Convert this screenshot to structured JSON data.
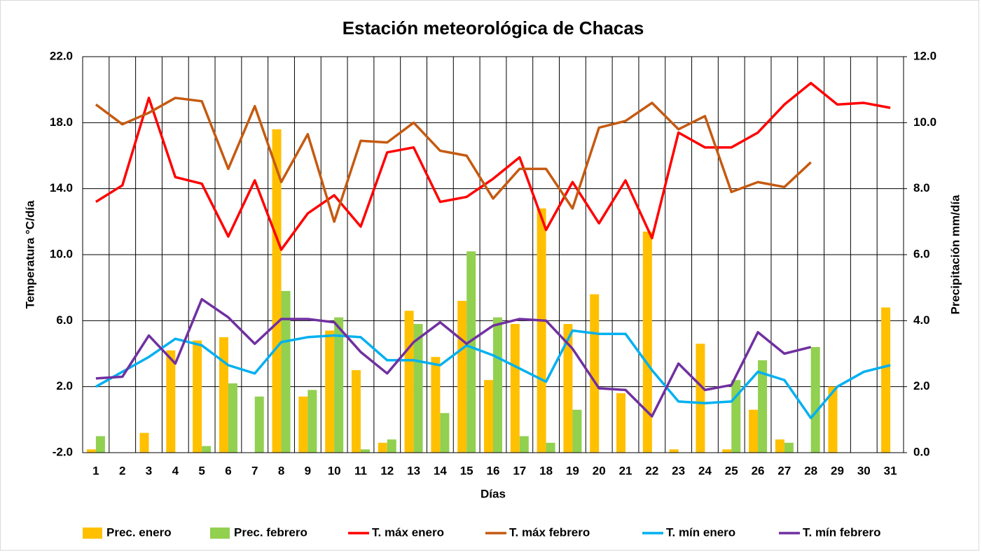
{
  "chart_data": {
    "type": "combo",
    "title": "Estación meteorológica de Chacas",
    "xlabel": "Días",
    "ylabel": "Temperatura °C/día",
    "y2label": "Precipitación mm/día",
    "categories": [
      "1",
      "2",
      "3",
      "4",
      "5",
      "6",
      "7",
      "8",
      "9",
      "10",
      "11",
      "12",
      "13",
      "14",
      "15",
      "16",
      "17",
      "18",
      "19",
      "20",
      "21",
      "22",
      "23",
      "24",
      "25",
      "26",
      "27",
      "28",
      "29",
      "30",
      "31"
    ],
    "ylim": [
      -2,
      22
    ],
    "yticks": [
      {
        "value": -2,
        "label": "-2.0"
      },
      {
        "value": 2,
        "label": "2.0"
      },
      {
        "value": 6,
        "label": "6.0"
      },
      {
        "value": 10,
        "label": "10.0"
      },
      {
        "value": 14,
        "label": "14.0"
      },
      {
        "value": 18,
        "label": "18.0"
      },
      {
        "value": 22,
        "label": "22.0"
      }
    ],
    "y2lim": [
      0,
      12
    ],
    "y2ticks": [
      {
        "value": 0,
        "label": "0.0"
      },
      {
        "value": 2,
        "label": "2.0"
      },
      {
        "value": 4,
        "label": "4.0"
      },
      {
        "value": 6,
        "label": "6.0"
      },
      {
        "value": 8,
        "label": "8.0"
      },
      {
        "value": 10,
        "label": "10.0"
      },
      {
        "value": 12,
        "label": "12.0"
      }
    ],
    "grid": true,
    "legend": "bottom",
    "series": [
      {
        "name": "Prec. enero",
        "type": "bar",
        "axis": "y2",
        "color": "#FFC000",
        "values": [
          0.1,
          0,
          0.6,
          3.1,
          3.4,
          3.5,
          0,
          9.8,
          1.7,
          3.7,
          2.5,
          0.3,
          4.3,
          2.9,
          4.6,
          2.2,
          3.9,
          7.4,
          3.9,
          4.8,
          1.8,
          6.7,
          0.1,
          3.3,
          0.1,
          1.3,
          0.4,
          0,
          2.0,
          0,
          4.4
        ]
      },
      {
        "name": "Prec. febrero",
        "type": "bar",
        "axis": "y2",
        "color": "#92D050",
        "values": [
          0.5,
          0,
          0,
          0,
          0.2,
          2.1,
          1.7,
          4.9,
          1.9,
          4.1,
          0.1,
          0.4,
          3.9,
          1.2,
          6.1,
          4.1,
          0.5,
          0.3,
          1.3,
          0,
          0,
          0,
          0,
          0,
          2.2,
          2.8,
          0.3,
          3.2,
          null,
          null,
          null
        ]
      },
      {
        "name": "T. máx enero",
        "type": "line",
        "color": "#FF0000",
        "values": [
          13.2,
          14.2,
          19.5,
          14.7,
          14.3,
          11.1,
          14.5,
          10.3,
          12.5,
          13.6,
          11.7,
          16.2,
          16.5,
          13.2,
          13.5,
          14.6,
          15.9,
          11.5,
          14.4,
          11.9,
          14.5,
          11.0,
          17.4,
          16.5,
          16.5,
          17.4,
          19.1,
          20.4,
          19.1,
          19.2,
          18.9
        ]
      },
      {
        "name": "T. máx febrero",
        "type": "line",
        "color": "#C55A11",
        "values": [
          19.1,
          17.9,
          18.6,
          19.5,
          19.3,
          15.2,
          19.0,
          14.4,
          17.3,
          12.0,
          16.9,
          16.8,
          18.0,
          16.3,
          16.0,
          13.4,
          15.2,
          15.2,
          12.8,
          17.7,
          18.1,
          19.2,
          17.6,
          18.4,
          13.8,
          14.4,
          14.1,
          15.6,
          null,
          null,
          null
        ]
      },
      {
        "name": "T. mín enero",
        "type": "line",
        "color": "#00B0F0",
        "values": [
          2.0,
          2.9,
          3.8,
          4.9,
          4.5,
          3.3,
          2.8,
          4.7,
          5.0,
          5.1,
          5.0,
          3.6,
          3.6,
          3.3,
          4.5,
          3.9,
          3.1,
          2.3,
          5.4,
          5.2,
          5.2,
          3.0,
          1.1,
          1.0,
          1.1,
          2.9,
          2.4,
          0.1,
          2.0,
          2.9,
          3.3
        ]
      },
      {
        "name": "T. mín febrero",
        "type": "line",
        "color": "#7030A0",
        "values": [
          2.5,
          2.6,
          5.1,
          3.4,
          7.3,
          6.2,
          4.6,
          6.1,
          6.1,
          5.9,
          4.1,
          2.8,
          4.7,
          5.9,
          4.6,
          5.7,
          6.1,
          6.0,
          4.3,
          1.9,
          1.8,
          0.2,
          3.4,
          1.8,
          2.1,
          5.3,
          4.0,
          4.4,
          null,
          null,
          null
        ]
      }
    ]
  }
}
